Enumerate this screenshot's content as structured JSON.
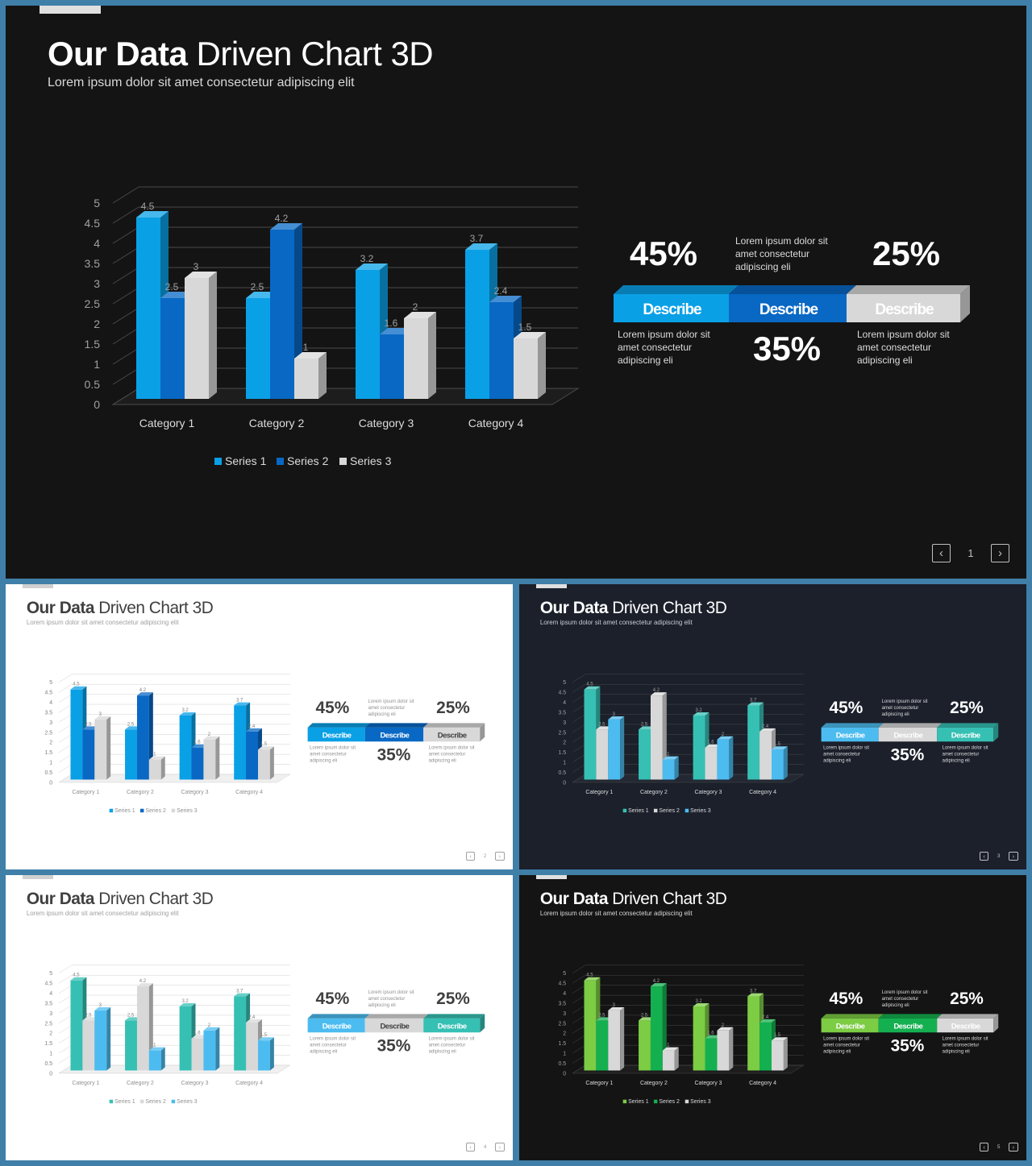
{
  "slides": [
    {
      "theme": "black",
      "title_bold": "Our Data",
      "title_light": "Driven Chart 3D",
      "subtitle": "Lorem ipsum dolor sit amet consectetur adipiscing elit",
      "page_number": "1",
      "colors": {
        "bg": "#141414",
        "s1": "#0aa0e6",
        "s2": "#0868c4",
        "s3": "#d8d8d8",
        "text": "#ffffff",
        "axis": "#a0a0a0"
      },
      "stats": {
        "pct_left": "45%",
        "pct_mid": "35%",
        "pct_right": "25%",
        "bar_labels": [
          "Describe",
          "Describe",
          "Describe"
        ],
        "bar_colors": [
          "#0aa0e6",
          "#0868c4",
          "#d8d8d8"
        ],
        "desc_top": [
          "Lorem ipsum dolor sit",
          "amet consectetur",
          "adipiscing eli"
        ],
        "desc_left": [
          "Lorem ipsum dolor sit",
          "amet consectetur",
          "adipiscing eli"
        ],
        "desc_right": [
          "Lorem ipsum dolor sit",
          "amet consectetur",
          "adipiscing eli"
        ]
      }
    },
    {
      "theme": "white",
      "title_bold": "Our Data",
      "title_light": "Driven Chart 3D",
      "subtitle": "Lorem ipsum dolor sit amet consectetur adipiscing elit",
      "page_number": "2",
      "colors": {
        "bg": "#ffffff",
        "s1": "#0aa0e6",
        "s2": "#0868c4",
        "s3": "#d8d8d8",
        "text": "#404040",
        "axis": "#808080"
      },
      "stats": {
        "pct_left": "45%",
        "pct_mid": "35%",
        "pct_right": "25%",
        "bar_labels": [
          "Describe",
          "Describe",
          "Describe"
        ],
        "bar_colors": [
          "#0aa0e6",
          "#0868c4",
          "#d8d8d8"
        ],
        "desc_top": [
          "Lorem ipsum dolor sit",
          "amet consectetur",
          "adipiscing eli"
        ],
        "desc_left": [
          "Lorem ipsum dolor sit",
          "amet consectetur",
          "adipiscing eli"
        ],
        "desc_right": [
          "Lorem ipsum dolor sit",
          "amet consectetur",
          "adipiscing eli"
        ]
      }
    },
    {
      "theme": "navy",
      "title_bold": "Our Data",
      "title_light": "Driven Chart 3D",
      "subtitle": "Lorem ipsum dolor sit amet consectetur adipiscing elit",
      "page_number": "3",
      "colors": {
        "bg": "#1b202b",
        "s1": "#36c0b4",
        "s2": "#d8d8d8",
        "s3": "#4cbcf0",
        "text": "#ffffff",
        "axis": "#a0a0a0"
      },
      "stats": {
        "pct_left": "45%",
        "pct_mid": "35%",
        "pct_right": "25%",
        "bar_labels": [
          "Describe",
          "Describe",
          "Describe"
        ],
        "bar_colors": [
          "#4cbcf0",
          "#d8d8d8",
          "#36c0b4"
        ],
        "desc_top": [
          "Lorem ipsum dolor sit",
          "amet consectetur",
          "adipiscing eli"
        ],
        "desc_left": [
          "Lorem ipsum dolor sit",
          "amet consectetur",
          "adipiscing eli"
        ],
        "desc_right": [
          "Lorem ipsum dolor sit",
          "amet consectetur",
          "adipiscing eli"
        ]
      }
    },
    {
      "theme": "white",
      "title_bold": "Our Data",
      "title_light": "Driven Chart 3D",
      "subtitle": "Lorem ipsum dolor sit amet consectetur adipiscing elit",
      "page_number": "4",
      "colors": {
        "bg": "#ffffff",
        "s1": "#36c0b4",
        "s2": "#d8d8d8",
        "s3": "#4cbcf0",
        "text": "#404040",
        "axis": "#808080"
      },
      "stats": {
        "pct_left": "45%",
        "pct_mid": "35%",
        "pct_right": "25%",
        "bar_labels": [
          "Describe",
          "Describe",
          "Describe"
        ],
        "bar_colors": [
          "#4cbcf0",
          "#d8d8d8",
          "#36c0b4"
        ],
        "desc_top": [
          "Lorem ipsum dolor sit",
          "amet consectetur",
          "adipiscing eli"
        ],
        "desc_left": [
          "Lorem ipsum dolor sit",
          "amet consectetur",
          "adipiscing eli"
        ],
        "desc_right": [
          "Lorem ipsum dolor sit",
          "amet consectetur",
          "adipiscing eli"
        ]
      }
    },
    {
      "theme": "black",
      "title_bold": "Our Data",
      "title_light": "Driven Chart 3D",
      "subtitle": "Lorem ipsum dolor sit amet consectetur adipiscing elit",
      "page_number": "5",
      "colors": {
        "bg": "#141414",
        "s1": "#7ccc44",
        "s2": "#14b050",
        "s3": "#d8d8d8",
        "text": "#ffffff",
        "axis": "#a0a0a0"
      },
      "stats": {
        "pct_left": "45%",
        "pct_mid": "35%",
        "pct_right": "25%",
        "bar_labels": [
          "Describe",
          "Describe",
          "Describe"
        ],
        "bar_colors": [
          "#7ccc44",
          "#14b050",
          "#d8d8d8"
        ],
        "desc_top": [
          "Lorem ipsum dolor sit",
          "amet consectetur",
          "adipiscing eli"
        ],
        "desc_left": [
          "Lorem ipsum dolor sit",
          "amet consectetur",
          "adipiscing eli"
        ],
        "desc_right": [
          "Lorem ipsum dolor sit",
          "amet consectetur",
          "adipiscing eli"
        ]
      }
    }
  ],
  "icons": {
    "prev": "chevron-left-icon",
    "next": "chevron-right-icon"
  },
  "chart_data": {
    "type": "bar",
    "categories": [
      "Category 1",
      "Category 2",
      "Category 3",
      "Category 4"
    ],
    "series": [
      {
        "name": "Series 1",
        "values": [
          4.5,
          2.5,
          3.2,
          3.7
        ]
      },
      {
        "name": "Series 2",
        "values": [
          2.5,
          4.2,
          1.6,
          2.4
        ]
      },
      {
        "name": "Series 3",
        "values": [
          3,
          1,
          2,
          1.5
        ]
      }
    ],
    "data_labels": [
      [
        "4.5",
        "2.5",
        "3.2",
        "3.7"
      ],
      [
        "2.5",
        "4.2",
        "1.6",
        "2.4"
      ],
      [
        "3",
        "1",
        "2",
        "1.5"
      ]
    ],
    "yticks": [
      "0",
      "0.5",
      "1",
      "1.5",
      "2",
      "2.5",
      "3",
      "3.5",
      "4",
      "4.5",
      "5"
    ],
    "ylim": [
      0,
      5
    ],
    "style": "3d-clustered-column",
    "grid": true,
    "legend": "bottom"
  }
}
